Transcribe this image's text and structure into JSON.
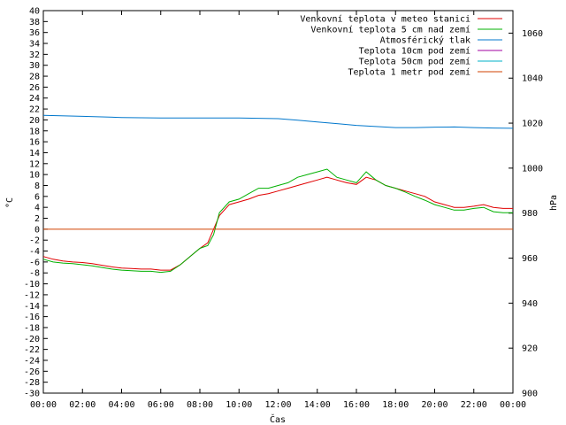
{
  "chart_data": {
    "type": "line",
    "xlabel": "Čas",
    "ylabel_left": "°C",
    "ylabel_right": "hPa",
    "ylim_left": [
      -30,
      40
    ],
    "ylim_right": [
      900,
      1070
    ],
    "xlim": [
      0,
      24
    ],
    "x_ticks": [
      "00:00",
      "02:00",
      "04:00",
      "06:00",
      "08:00",
      "10:00",
      "12:00",
      "14:00",
      "16:00",
      "18:00",
      "20:00",
      "22:00",
      "00:00"
    ],
    "y_ticks_left": [
      40,
      38,
      36,
      34,
      32,
      30,
      28,
      26,
      24,
      22,
      20,
      18,
      16,
      14,
      12,
      10,
      8,
      6,
      4,
      2,
      0,
      -2,
      -4,
      -6,
      -8,
      -10,
      -12,
      -14,
      -16,
      -18,
      -20,
      -22,
      -24,
      -26,
      -28,
      -30
    ],
    "y_ticks_right": [
      1060,
      1040,
      1020,
      1000,
      980,
      960,
      940,
      920,
      900
    ],
    "legend_position": "top-right",
    "series": [
      {
        "name": "Venkovní teplota v meteo stanici",
        "color": "#e00000",
        "axis": "left",
        "points": [
          [
            0,
            -5
          ],
          [
            0.5,
            -5.5
          ],
          [
            1,
            -5.8
          ],
          [
            1.5,
            -6
          ],
          [
            2,
            -6.1
          ],
          [
            2.5,
            -6.3
          ],
          [
            3,
            -6.6
          ],
          [
            3.5,
            -6.9
          ],
          [
            4,
            -7.1
          ],
          [
            4.5,
            -7.2
          ],
          [
            5,
            -7.3
          ],
          [
            5.5,
            -7.3
          ],
          [
            6,
            -7.5
          ],
          [
            6.5,
            -7.5
          ],
          [
            7,
            -6.5
          ],
          [
            7.5,
            -5
          ],
          [
            8,
            -3.5
          ],
          [
            8.4,
            -2.5
          ],
          [
            8.7,
            0
          ],
          [
            9,
            2.5
          ],
          [
            9.5,
            4.5
          ],
          [
            10,
            5
          ],
          [
            10.5,
            5.5
          ],
          [
            11,
            6.2
          ],
          [
            11.5,
            6.5
          ],
          [
            12,
            7
          ],
          [
            12.5,
            7.5
          ],
          [
            13,
            8
          ],
          [
            13.5,
            8.5
          ],
          [
            14,
            9
          ],
          [
            14.5,
            9.5
          ],
          [
            15,
            9
          ],
          [
            15.5,
            8.5
          ],
          [
            16,
            8.2
          ],
          [
            16.5,
            9.5
          ],
          [
            17,
            9
          ],
          [
            17.5,
            8
          ],
          [
            18,
            7.5
          ],
          [
            18.5,
            7
          ],
          [
            19,
            6.5
          ],
          [
            19.5,
            6
          ],
          [
            20,
            5
          ],
          [
            20.5,
            4.5
          ],
          [
            21,
            4
          ],
          [
            21.5,
            4
          ],
          [
            22,
            4.2
          ],
          [
            22.5,
            4.5
          ],
          [
            23,
            4
          ],
          [
            23.5,
            3.8
          ],
          [
            24,
            3.8
          ]
        ]
      },
      {
        "name": "Venkovní teplota 5 cm nad zemí",
        "color": "#00b000",
        "axis": "left",
        "points": [
          [
            0,
            -5.5
          ],
          [
            0.5,
            -6
          ],
          [
            1,
            -6.2
          ],
          [
            1.5,
            -6.3
          ],
          [
            2,
            -6.5
          ],
          [
            2.5,
            -6.7
          ],
          [
            3,
            -7
          ],
          [
            3.5,
            -7.3
          ],
          [
            4,
            -7.5
          ],
          [
            4.5,
            -7.6
          ],
          [
            5,
            -7.7
          ],
          [
            5.5,
            -7.7
          ],
          [
            6,
            -7.9
          ],
          [
            6.5,
            -7.7
          ],
          [
            7,
            -6.5
          ],
          [
            7.5,
            -5
          ],
          [
            8,
            -3.5
          ],
          [
            8.4,
            -3
          ],
          [
            8.7,
            -1
          ],
          [
            9,
            3
          ],
          [
            9.5,
            5
          ],
          [
            10,
            5.5
          ],
          [
            10.5,
            6.5
          ],
          [
            11,
            7.5
          ],
          [
            11.5,
            7.5
          ],
          [
            12,
            8
          ],
          [
            12.5,
            8.5
          ],
          [
            13,
            9.5
          ],
          [
            13.5,
            10
          ],
          [
            14,
            10.5
          ],
          [
            14.5,
            11
          ],
          [
            15,
            9.5
          ],
          [
            15.5,
            9
          ],
          [
            16,
            8.5
          ],
          [
            16.5,
            10.5
          ],
          [
            17,
            9
          ],
          [
            17.5,
            8
          ],
          [
            18,
            7.5
          ],
          [
            18.5,
            6.8
          ],
          [
            19,
            6
          ],
          [
            19.5,
            5.3
          ],
          [
            20,
            4.5
          ],
          [
            20.5,
            4
          ],
          [
            21,
            3.5
          ],
          [
            21.5,
            3.5
          ],
          [
            22,
            3.8
          ],
          [
            22.5,
            4
          ],
          [
            23,
            3.2
          ],
          [
            23.5,
            3
          ],
          [
            24,
            3
          ]
        ]
      },
      {
        "name": "Atmosférický tlak",
        "color": "#0077cc",
        "axis": "right",
        "points": [
          [
            0,
            1023.5
          ],
          [
            2,
            1023
          ],
          [
            4,
            1022.5
          ],
          [
            6,
            1022.3
          ],
          [
            8,
            1022.3
          ],
          [
            10,
            1022.3
          ],
          [
            12,
            1022
          ],
          [
            13,
            1021.3
          ],
          [
            14,
            1020.5
          ],
          [
            15,
            1019.8
          ],
          [
            16,
            1019
          ],
          [
            17,
            1018.5
          ],
          [
            18,
            1018
          ],
          [
            19,
            1018
          ],
          [
            20,
            1018.2
          ],
          [
            21,
            1018.3
          ],
          [
            22,
            1018
          ],
          [
            23,
            1017.8
          ],
          [
            24,
            1017.7
          ]
        ]
      },
      {
        "name": "Teplota 10cm pod zemí",
        "color": "#a000a0",
        "axis": "left",
        "points": []
      },
      {
        "name": "Teplota 50cm pod zemí",
        "color": "#00b0c8",
        "axis": "left",
        "points": []
      },
      {
        "name": "Teplota 1 metr pod zemí",
        "color": "#d04000",
        "axis": "left",
        "points": [
          [
            0,
            0
          ],
          [
            24,
            0
          ]
        ]
      }
    ]
  }
}
